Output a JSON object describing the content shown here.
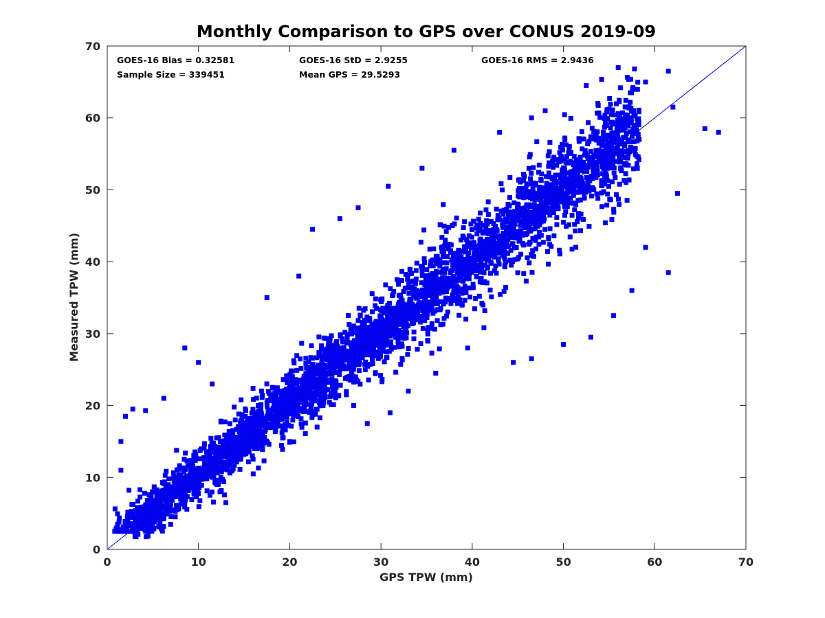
{
  "chart_data": {
    "type": "scatter",
    "title": "Monthly Comparison to GPS over CONUS 2019-09",
    "xlabel": "GPS TPW (mm)",
    "ylabel": "Measured TPW (mm)",
    "xlim": [
      0,
      70
    ],
    "ylim": [
      0,
      70
    ],
    "xticks": [
      "0",
      "10",
      "20",
      "30",
      "40",
      "50",
      "60",
      "70"
    ],
    "yticks": [
      "0",
      "10",
      "20",
      "30",
      "40",
      "50",
      "60",
      "70"
    ],
    "grid": false,
    "legend": "none",
    "marker_color": "#0000ee",
    "reference_line": {
      "name": "1:1 line",
      "from": [
        0,
        0
      ],
      "to": [
        70,
        70
      ],
      "color": "#0000cc"
    },
    "stats": {
      "bias": "GOES-16 Bias = 0.32581",
      "std": "GOES-16 StD = 2.9255",
      "rms": "GOES-16 RMS = 2.9436",
      "sample_size": "Sample Size = 339451",
      "mean_gps": "Mean GPS = 29.5293"
    },
    "series": [
      {
        "approx_relation": "y ≈ x + 0.33, scatter std ≈ 2.9 mm",
        "outliers": [
          [
            1.5,
            15.0
          ],
          [
            2.0,
            18.5
          ],
          [
            2.8,
            19.5
          ],
          [
            4.2,
            19.3
          ],
          [
            6.2,
            21.0
          ],
          [
            8.5,
            28.0
          ],
          [
            10.0,
            26.0
          ],
          [
            11.5,
            23.0
          ],
          [
            17.5,
            35.0
          ],
          [
            21.0,
            38.0
          ],
          [
            22.5,
            44.5
          ],
          [
            25.5,
            46.0
          ],
          [
            27.5,
            47.5
          ],
          [
            30.8,
            50.5
          ],
          [
            34.5,
            53.0
          ],
          [
            38.0,
            55.5
          ],
          [
            43.0,
            58.0
          ],
          [
            46.5,
            60.0
          ],
          [
            48.0,
            61.0
          ],
          [
            52.5,
            64.5
          ],
          [
            56.0,
            67.0
          ],
          [
            59.0,
            65.0
          ],
          [
            61.5,
            66.5
          ],
          [
            62.0,
            61.5
          ],
          [
            65.5,
            58.5
          ],
          [
            67.0,
            58.0
          ],
          [
            62.5,
            49.5
          ],
          [
            61.5,
            38.5
          ],
          [
            59.0,
            42.0
          ],
          [
            57.5,
            36.0
          ],
          [
            55.5,
            32.5
          ],
          [
            53.0,
            29.5
          ],
          [
            50.0,
            28.5
          ],
          [
            46.5,
            26.5
          ],
          [
            44.5,
            26.0
          ],
          [
            39.5,
            28.0
          ],
          [
            36.0,
            24.5
          ],
          [
            33.0,
            22.0
          ],
          [
            31.0,
            19.0
          ],
          [
            28.5,
            17.5
          ],
          [
            27.0,
            20.0
          ],
          [
            23.0,
            17.0
          ],
          [
            20.0,
            15.0
          ],
          [
            16.0,
            10.5
          ],
          [
            13.0,
            6.5
          ],
          [
            1.0,
            2.5
          ],
          [
            1.5,
            11.0
          ]
        ]
      }
    ]
  }
}
